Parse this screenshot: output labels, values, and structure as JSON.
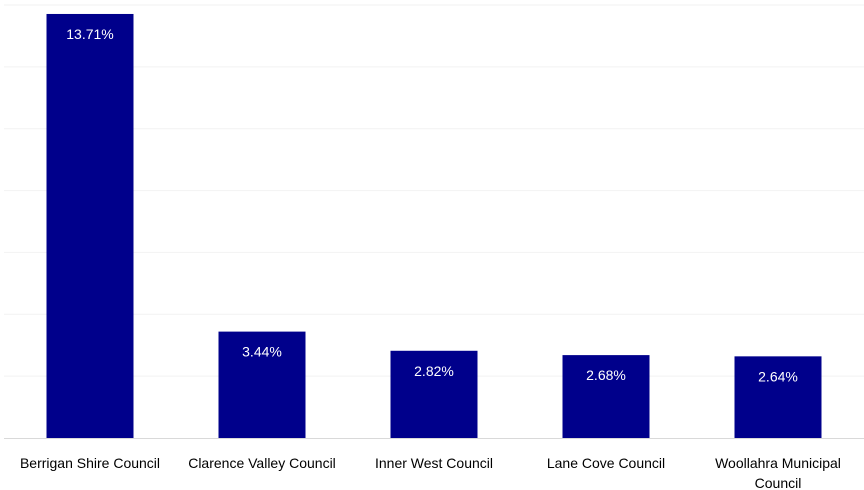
{
  "chart_data": {
    "type": "bar",
    "categories": [
      [
        "Berrigan Shire Council"
      ],
      [
        "Clarence Valley Council"
      ],
      [
        "Inner West Council"
      ],
      [
        "Lane Cove Council"
      ],
      [
        "Woollahra Municipal",
        "Council"
      ]
    ],
    "values": [
      13.71,
      3.44,
      2.82,
      2.68,
      2.64
    ],
    "data_labels": [
      "13.71%",
      "3.44%",
      "2.82%",
      "2.68%",
      "2.64%"
    ],
    "unit": "%",
    "ylim": [
      0,
      14
    ],
    "grid": true,
    "legend": "none",
    "title": "",
    "xlabel": "",
    "ylabel": "",
    "bar_color": "#00008B"
  }
}
